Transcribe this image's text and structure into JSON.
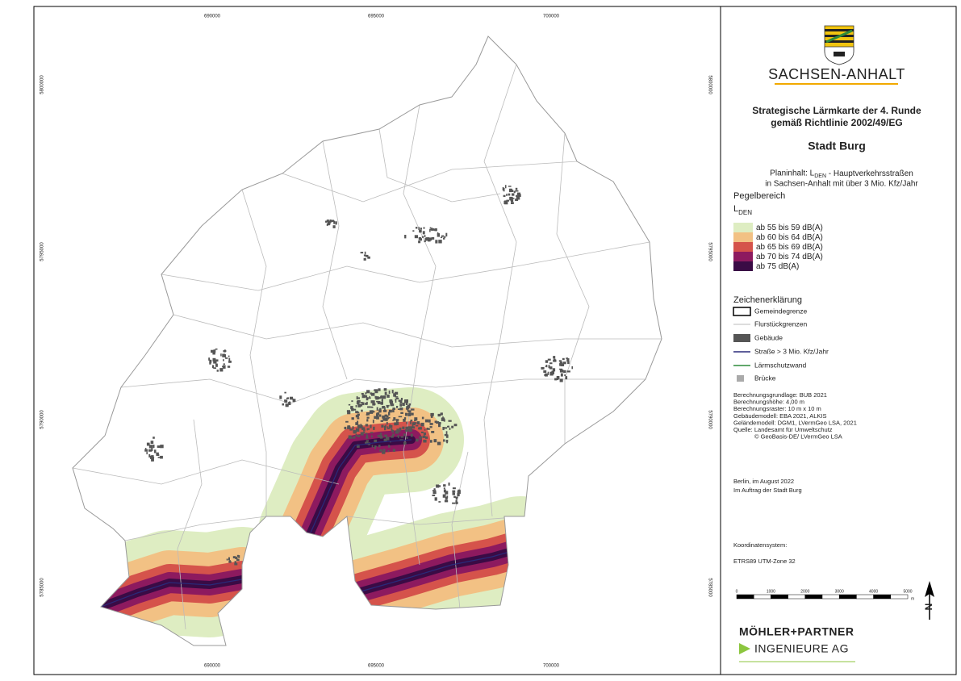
{
  "map_frame": {
    "x_ticks": [
      "690000",
      "695000",
      "700000"
    ],
    "y_ticks": [
      "5800000",
      "5795000",
      "5790000",
      "5785000"
    ]
  },
  "header": {
    "state": "SACHSEN-ANHALT",
    "title_lines": [
      "Strategische Lärmkarte der 4. Runde",
      "gemäß Richtlinie 2002/49/EG"
    ],
    "city": "Stadt Burg",
    "content": {
      "prefix": "Planinhalt: L",
      "sub": "DEN",
      "suffix": " - Hauptverkehrsstraßen",
      "line2": "in Sachsen-Anhalt mit über 3 Mio. Kfz/Jahr"
    }
  },
  "noise_legend": {
    "title": "Pegelbereich",
    "indicator": "L",
    "indicator_sub": "DEN",
    "levels": [
      {
        "label": "ab 55 bis 59 dB(A)",
        "color": "#deedc2"
      },
      {
        "label": "ab 60 bis 64 dB(A)",
        "color": "#f2c184"
      },
      {
        "label": "ab 65 bis 69 dB(A)",
        "color": "#d5534b"
      },
      {
        "label": "ab 70 bis 74 dB(A)",
        "color": "#8d1a5f"
      },
      {
        "label": "ab 75 dB(A)",
        "color": "#3a0b45"
      }
    ]
  },
  "symbols": {
    "title": "Zeichenerklärung",
    "items": [
      "Gemeindegrenze",
      "Flurstückgrenzen",
      "Gebäude",
      "Straße > 3 Mio. Kfz/Jahr",
      "Lärmschutzwand",
      "Brücke"
    ]
  },
  "notes": [
    "Berechnungsgrundlage: BUB 2021",
    "Berechnungshöhe: 4,00 m",
    "Berechnungsraster: 10 m x 10 m",
    "Gebäudemodell: EBA 2021, ALKIS",
    "Geländemodell: DGM1, LVermGeo LSA, 2021",
    "Quelle: Landesamt für Umweltschutz",
    "© GeoBasis-DE/ LVermGeo LSA"
  ],
  "date_lines": [
    "Berlin, im August 2022",
    "Im Auftrag der Stadt Burg"
  ],
  "crs": {
    "label": "Koordinatensystem:",
    "value": "ETRS89 UTM-Zone 32"
  },
  "scale_bar": {
    "ticks": [
      "0",
      "1000",
      "2000",
      "3000",
      "4000",
      "5000"
    ],
    "unit": "m"
  },
  "north": "N",
  "company": {
    "name": "MÖHLER+PARTNER",
    "sub": "INGENIEURE AG"
  }
}
